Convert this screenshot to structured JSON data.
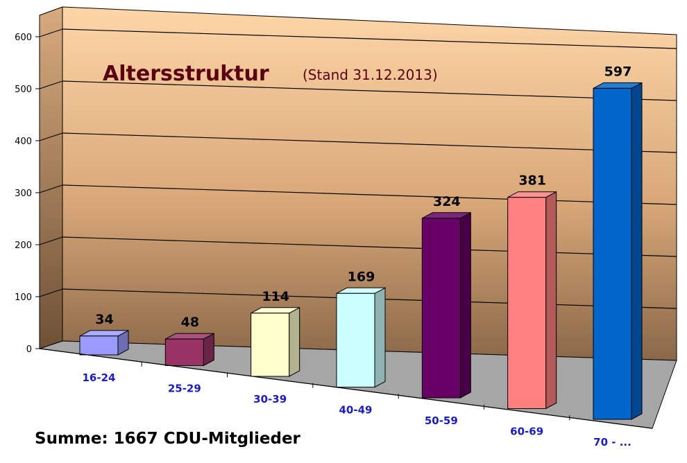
{
  "chart_data": {
    "type": "bar",
    "title": "Altersstruktur",
    "subtitle": "(Stand 31.12.2013)",
    "categories": [
      "16-24",
      "25-29",
      "30-39",
      "40-49",
      "50-59",
      "60-69",
      "70 - ..."
    ],
    "values": [
      34,
      48,
      114,
      169,
      324,
      381,
      597
    ],
    "colors": [
      "#9b9bff",
      "#993366",
      "#ffffcc",
      "#ccffff",
      "#660066",
      "#ff8080",
      "#0066cc"
    ],
    "yticks": [
      "0",
      "100",
      "200",
      "300",
      "400",
      "500",
      "600"
    ],
    "ylim": [
      0,
      600
    ],
    "grid": true,
    "xlabel": "",
    "ylabel": "",
    "footer": "Summe: 1667 CDU-Mitglieder"
  }
}
